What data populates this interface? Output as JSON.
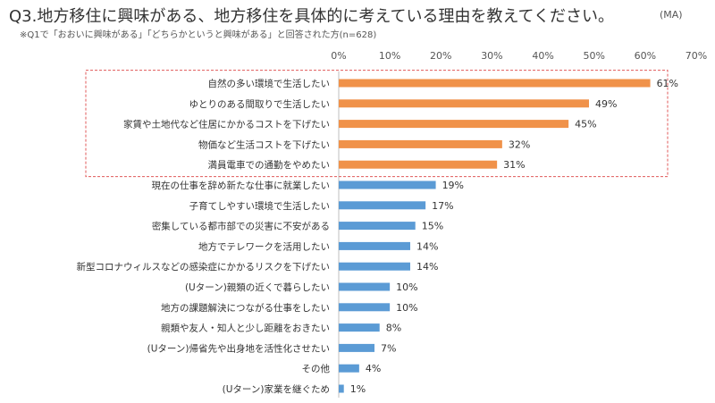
{
  "header": {
    "title": "Q3.地方移住に興味がある、地方移住を具体的に考えている理由を教えてください。",
    "answer_type": "(MA)",
    "note": "※Q1で「おおいに興味がある」「どちらかというと興味がある」と回答された方(n=628)"
  },
  "chart_data": {
    "type": "bar",
    "orientation": "horizontal",
    "value_suffix": "%",
    "xlim": [
      0,
      70
    ],
    "ticks": [
      "0%",
      "10%",
      "20%",
      "30%",
      "40%",
      "50%",
      "60%",
      "70%"
    ],
    "grid": false,
    "colors": {
      "highlight": "#f0924a",
      "default": "#5b9bd5",
      "frame": "#e05a5a"
    },
    "highlighted_count": 5,
    "categories": [
      "自然の多い環境で生活したい",
      "ゆとりのある間取りで生活したい",
      "家賃や土地代など住居にかかるコストを下げたい",
      "物価など生活コストを下げたい",
      "満員電車での通勤をやめたい",
      "現在の仕事を辞め新たな仕事に就業したい",
      "子育てしやすい環境で生活したい",
      "密集している都市部での災害に不安がある",
      "地方でテレワークを活用したい",
      "新型コロナウィルスなどの感染症にかかるリスクを下げたい",
      "(Uターン)親類の近くで暮らしたい",
      "地方の課題解決につながる仕事をしたい",
      "親類や友人・知人と少し距離をおきたい",
      "(Uターン)帰省先や出身地を活性化させたい",
      "その他",
      "(Uターン)家業を継ぐため"
    ],
    "values": [
      61,
      49,
      45,
      32,
      31,
      19,
      17,
      15,
      14,
      14,
      10,
      10,
      8,
      7,
      4,
      1
    ]
  }
}
